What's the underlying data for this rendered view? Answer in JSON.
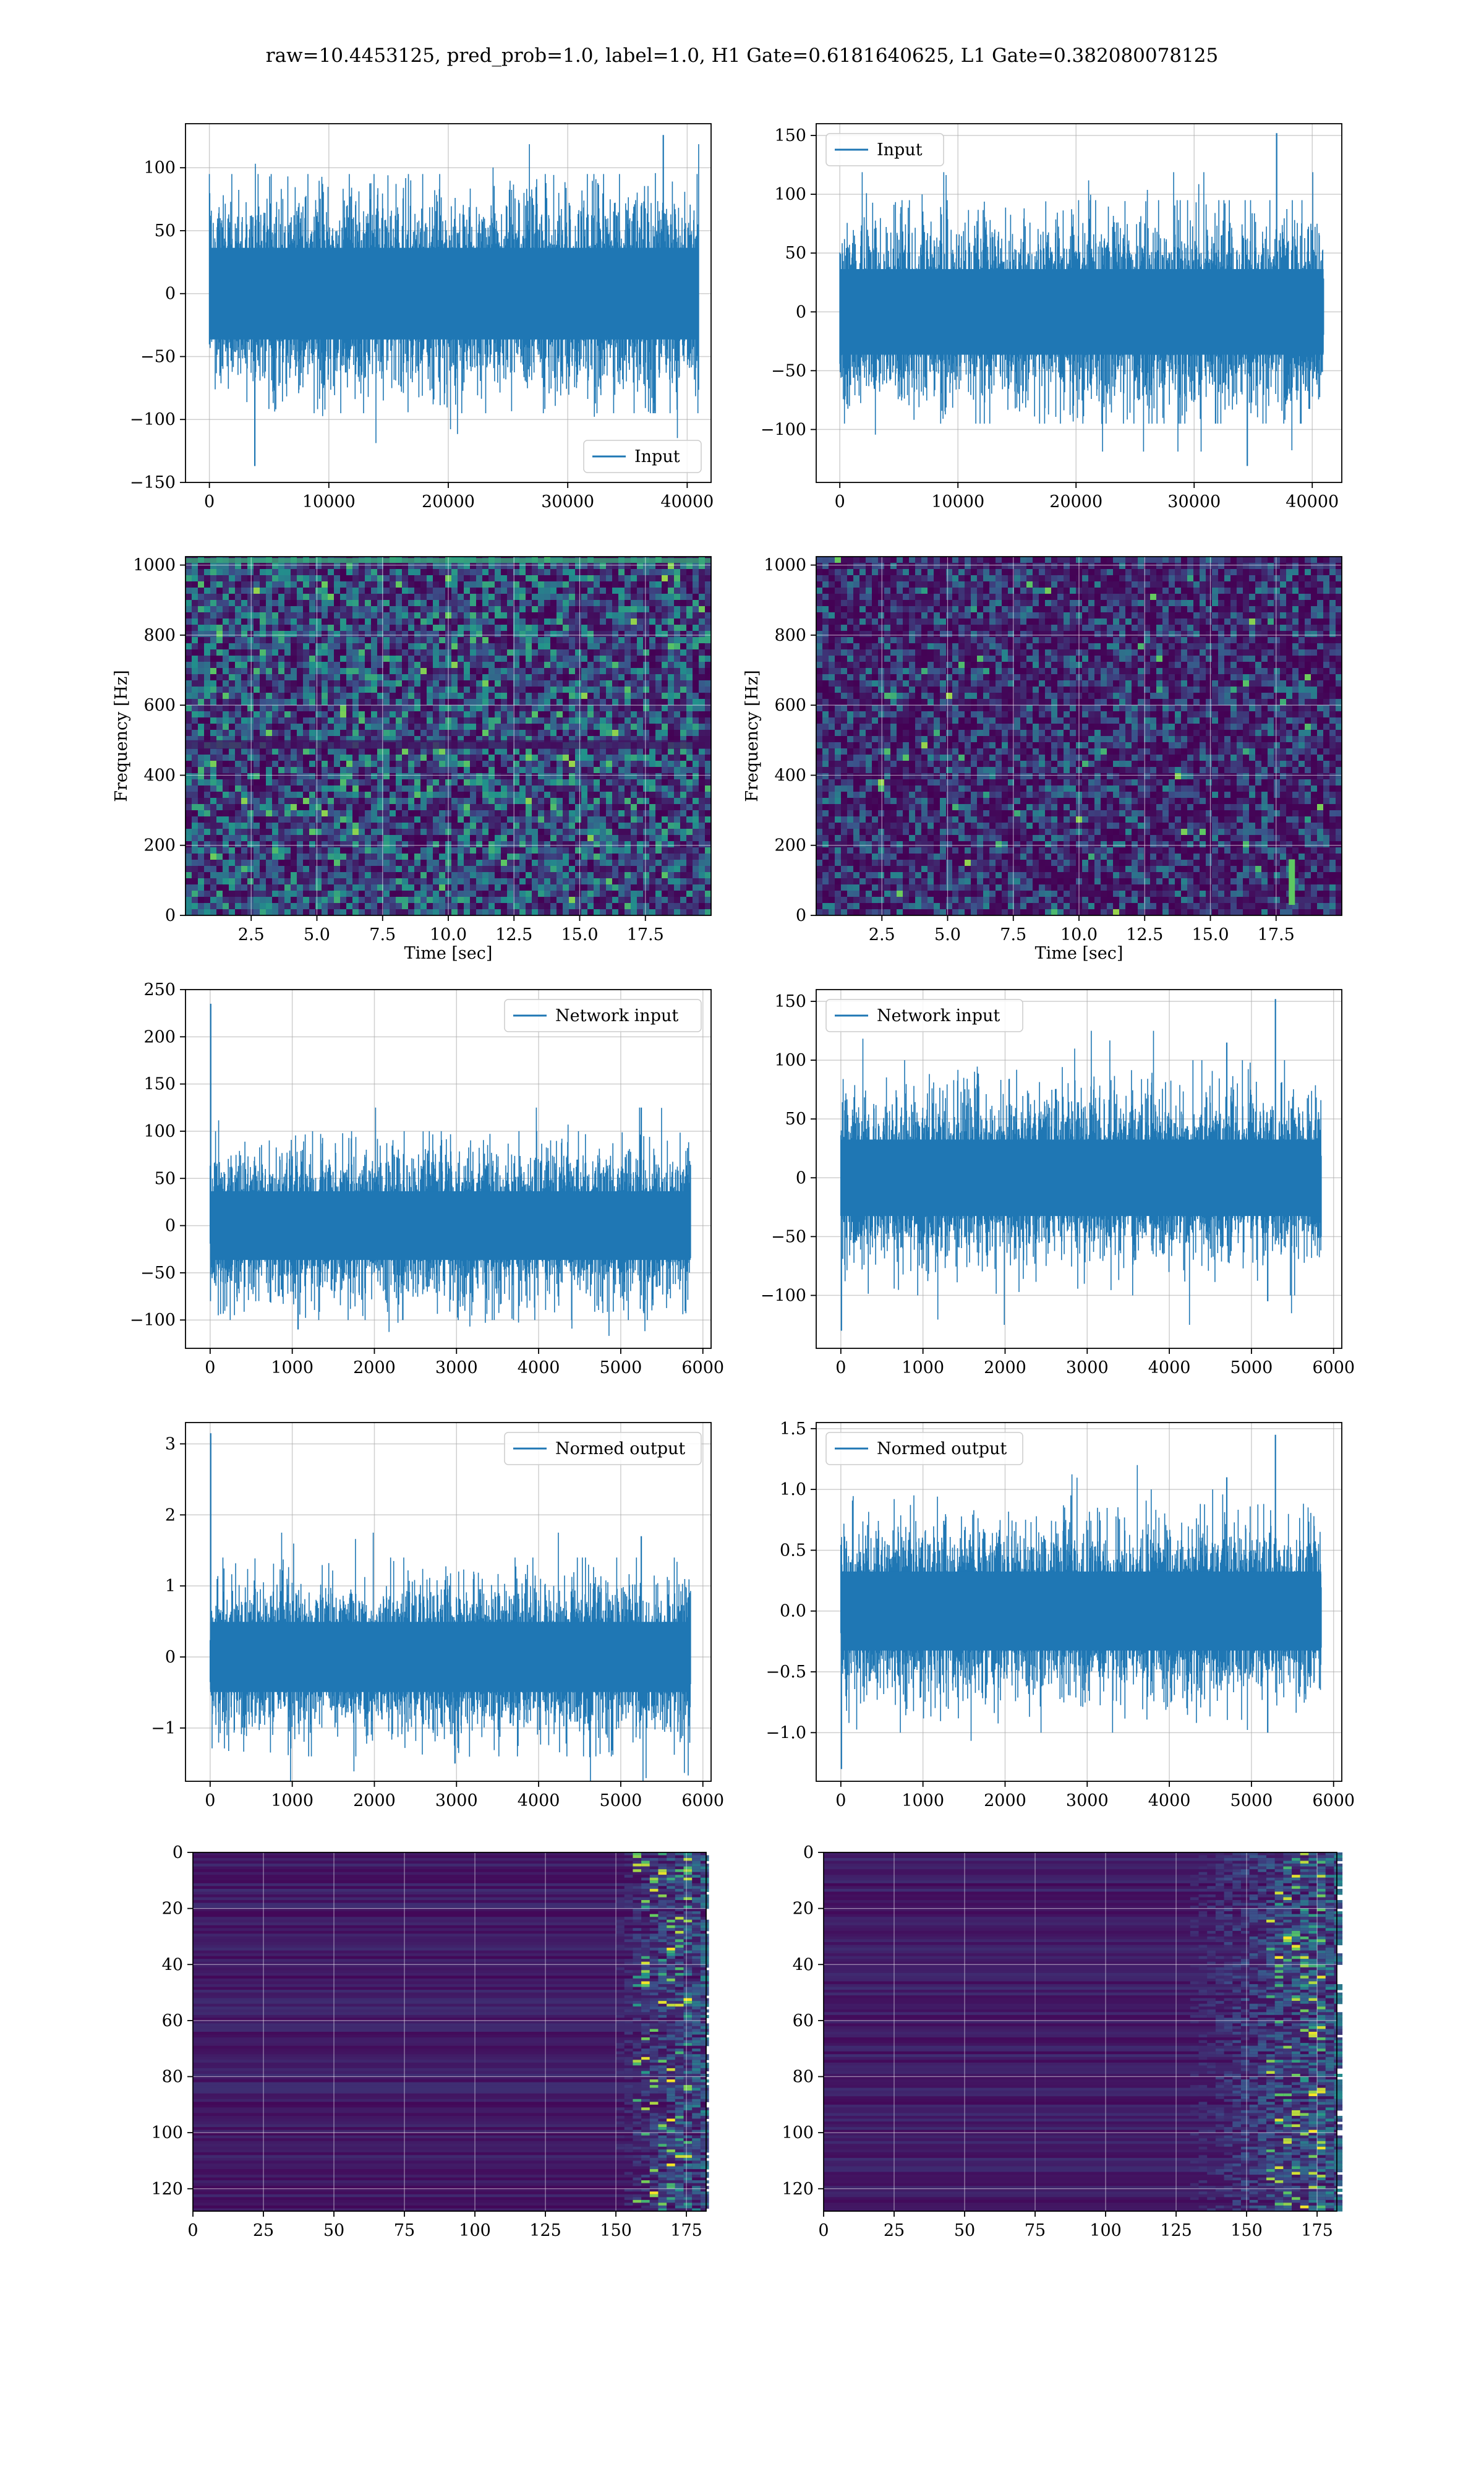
{
  "suptitle": "raw=10.4453125, pred_prob=1.0, label=1.0, H1 Gate=0.6181640625, L1 Gate=0.382080078125",
  "colors": {
    "line": "#1f77b4",
    "grid": "#b0b0b0",
    "viridis_low": "#440154",
    "viridis_mid": "#21918c",
    "viridis_high": "#fde725"
  },
  "chart_data": [
    {
      "id": "h1-raw",
      "type": "line",
      "legend": "Input",
      "legend_loc": "lower right",
      "xticks": [
        "0",
        "10000",
        "20000",
        "30000",
        "40000"
      ],
      "yticks": [
        "100",
        "50",
        "0",
        "−50",
        "−100",
        "−150"
      ],
      "xlim": [
        -2000,
        42000
      ],
      "ylim": [
        -150,
        135
      ],
      "x_range": [
        0,
        40960
      ],
      "envelope": [
        -95,
        95
      ],
      "noise_std": 28,
      "peaks": [
        [
          38000,
          126
        ],
        [
          3800,
          -137
        ]
      ],
      "grid": true
    },
    {
      "id": "l1-raw",
      "type": "line",
      "legend": "Input",
      "legend_loc": "upper left",
      "xticks": [
        "0",
        "10000",
        "20000",
        "30000",
        "40000"
      ],
      "yticks": [
        "150",
        "100",
        "50",
        "0",
        "−50",
        "−100"
      ],
      "xlim": [
        -2000,
        42500
      ],
      "ylim": [
        -145,
        160
      ],
      "x_range": [
        0,
        40960
      ],
      "envelope": [
        -95,
        95
      ],
      "noise_std": 28,
      "peaks": [
        [
          37000,
          152
        ],
        [
          34500,
          -131
        ]
      ],
      "grid": true
    },
    {
      "id": "h1-spec",
      "type": "heatmap",
      "ylabel": "Frequency [Hz]",
      "xlabel": "Time [sec]",
      "xticks": [
        "2.5",
        "5.0",
        "7.5",
        "10.0",
        "12.5",
        "15.0",
        "17.5"
      ],
      "yticks": [
        "1000",
        "800",
        "600",
        "400",
        "200",
        "0"
      ],
      "xlim": [
        0.0,
        20.0
      ],
      "ylim": [
        0,
        1024
      ],
      "colormap": "viridis",
      "grid": true
    },
    {
      "id": "l1-spec",
      "type": "heatmap",
      "ylabel": "Frequency [Hz]",
      "xlabel": "Time [sec]",
      "xticks": [
        "2.5",
        "5.0",
        "7.5",
        "10.0",
        "12.5",
        "15.0",
        "17.5"
      ],
      "yticks": [
        "1000",
        "800",
        "600",
        "400",
        "200",
        "0"
      ],
      "xlim": [
        0.0,
        20.0
      ],
      "ylim": [
        0,
        1024
      ],
      "colormap": "viridis",
      "grid": true,
      "bright_spot": {
        "time": 18.1,
        "freq_range": [
          30,
          160
        ]
      }
    },
    {
      "id": "h1-net",
      "type": "line",
      "legend": "Network input",
      "legend_loc": "upper right",
      "xticks": [
        "0",
        "1000",
        "2000",
        "3000",
        "4000",
        "5000",
        "6000"
      ],
      "yticks": [
        "250",
        "200",
        "150",
        "100",
        "50",
        "0",
        "−50",
        "−100"
      ],
      "xlim": [
        -300,
        6100
      ],
      "ylim": [
        -130,
        250
      ],
      "x_range": [
        0,
        5850
      ],
      "envelope": [
        -100,
        100
      ],
      "noise_std": 28,
      "peaks": [
        [
          5,
          235
        ],
        [
          5250,
          125
        ],
        [
          1070,
          -110
        ]
      ],
      "grid": true
    },
    {
      "id": "l1-net",
      "type": "line",
      "legend": "Network input",
      "legend_loc": "upper left",
      "xticks": [
        "0",
        "1000",
        "2000",
        "3000",
        "4000",
        "5000",
        "6000"
      ],
      "yticks": [
        "150",
        "100",
        "50",
        "0",
        "−50",
        "−100"
      ],
      "xlim": [
        -300,
        6100
      ],
      "ylim": [
        -145,
        160
      ],
      "x_range": [
        0,
        5850
      ],
      "envelope": [
        -100,
        100
      ],
      "noise_std": 25,
      "peaks": [
        [
          5290,
          152
        ],
        [
          4700,
          115
        ],
        [
          5200,
          -105
        ],
        [
          5,
          -130
        ]
      ],
      "grid": true
    },
    {
      "id": "h1-norm",
      "type": "line",
      "legend": "Normed output",
      "legend_loc": "upper right",
      "xticks": [
        "0",
        "1000",
        "2000",
        "3000",
        "4000",
        "5000",
        "6000"
      ],
      "yticks": [
        "3",
        "2",
        "1",
        "0",
        "−1"
      ],
      "xlim": [
        -300,
        6100
      ],
      "ylim": [
        -1.75,
        3.3
      ],
      "x_range": [
        0,
        5850
      ],
      "envelope": [
        -1.4,
        1.4
      ],
      "noise_std": 0.38,
      "peaks": [
        [
          5,
          3.15
        ],
        [
          5250,
          1.7
        ],
        [
          2980,
          -1.5
        ]
      ],
      "grid": true
    },
    {
      "id": "l1-norm",
      "type": "line",
      "legend": "Normed output",
      "legend_loc": "upper left",
      "xticks": [
        "0",
        "1000",
        "2000",
        "3000",
        "4000",
        "5000",
        "6000"
      ],
      "yticks": [
        "1.5",
        "1.0",
        "0.5",
        "0.0",
        "−0.5",
        "−1.0"
      ],
      "xlim": [
        -300,
        6100
      ],
      "ylim": [
        -1.4,
        1.55
      ],
      "x_range": [
        0,
        5850
      ],
      "envelope": [
        -1.0,
        1.0
      ],
      "noise_std": 0.25,
      "peaks": [
        [
          5290,
          1.45
        ],
        [
          4700,
          1.1
        ],
        [
          5200,
          -1.0
        ],
        [
          5,
          -1.3
        ]
      ],
      "grid": true
    },
    {
      "id": "h1-feat",
      "type": "heatmap",
      "colormap": "viridis",
      "xticks": [
        "0",
        "25",
        "50",
        "75",
        "100",
        "125",
        "150",
        "175"
      ],
      "yticks": [
        "0",
        "20",
        "40",
        "60",
        "80",
        "100",
        "120"
      ],
      "xlim": [
        0,
        182
      ],
      "ylim": [
        128,
        0
      ],
      "active_columns": [
        150,
        182
      ],
      "grid": true
    },
    {
      "id": "l1-feat",
      "type": "heatmap",
      "colormap": "viridis",
      "xticks": [
        "0",
        "25",
        "50",
        "75",
        "100",
        "125",
        "150",
        "175"
      ],
      "yticks": [
        "0",
        "20",
        "40",
        "60",
        "80",
        "100",
        "120"
      ],
      "xlim": [
        0,
        182
      ],
      "ylim": [
        128,
        0
      ],
      "active_columns": [
        130,
        182
      ],
      "grid": true
    }
  ]
}
